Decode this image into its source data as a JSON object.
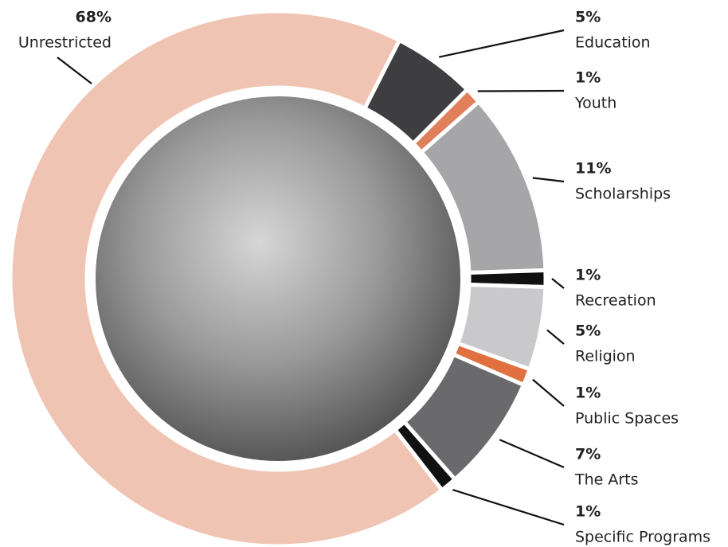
{
  "chart_data": {
    "type": "donut",
    "categories": [
      "Unrestricted",
      "Education",
      "Youth",
      "Scholarships",
      "Recreation",
      "Religion",
      "Public Spaces",
      "The Arts",
      "Specific Programs"
    ],
    "values": [
      68,
      5,
      1,
      11,
      1,
      5,
      1,
      7,
      1
    ],
    "value_labels": [
      "68%",
      "5%",
      "1%",
      "11%",
      "1%",
      "5%",
      "1%",
      "7%",
      "1%"
    ],
    "colors": [
      "#f0c4b3",
      "#3e3e40",
      "#e07f5a",
      "#a6a6a8",
      "#111111",
      "#c9c9cb",
      "#e0703f",
      "#6a6a6c",
      "#111111"
    ]
  }
}
